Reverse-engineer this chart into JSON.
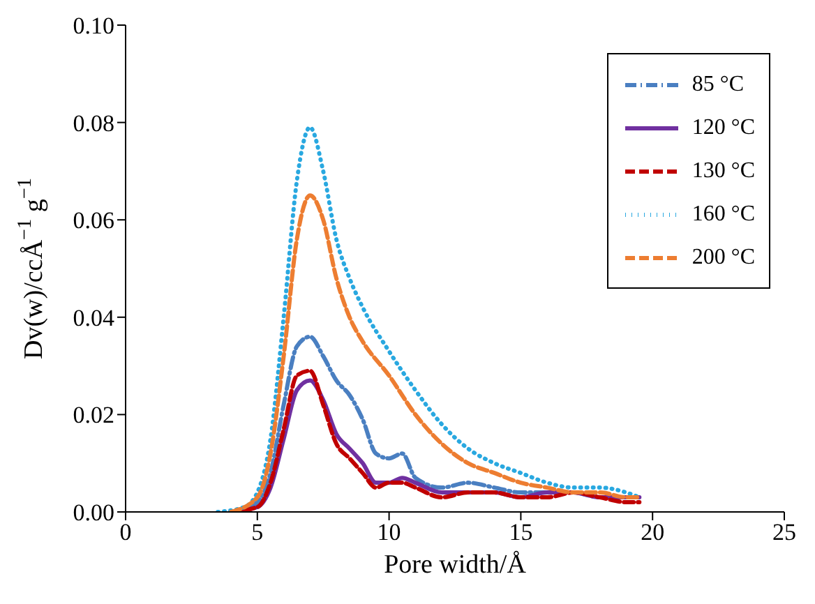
{
  "chart_data": {
    "type": "line",
    "xlabel": "Pore width/Å",
    "ylabel": "Dv(w)/ccÅ$^{−1}$ g$^{−1}$",
    "xlim": [
      0,
      25
    ],
    "xticks": [
      0,
      5,
      10,
      15,
      20,
      25
    ],
    "ylim": [
      0,
      0.1
    ],
    "yticks": [
      {
        "value": 0,
        "label": "0.00"
      },
      {
        "value": 0.02,
        "label": "0.02"
      },
      {
        "value": 0.04,
        "label": "0.04"
      },
      {
        "value": 0.06,
        "label": "0.06"
      },
      {
        "value": 0.08,
        "label": "0.08"
      },
      {
        "value": 0.1,
        "label": "0.10"
      }
    ],
    "legend": "top right",
    "marker": "none",
    "series": [
      {
        "name": "85 °C",
        "color": "#4a7fc1",
        "line_style": "dashdot",
        "x": [
          4,
          5,
          5.5,
          6,
          6.5,
          7,
          7.5,
          8,
          8.5,
          9,
          9.5,
          10,
          10.5,
          11,
          12,
          13,
          14,
          15,
          16,
          17,
          18,
          19,
          19.5
        ],
        "values": [
          0,
          0.002,
          0.008,
          0.022,
          0.034,
          0.036,
          0.032,
          0.027,
          0.024,
          0.019,
          0.012,
          0.011,
          0.012,
          0.007,
          0.005,
          0.006,
          0.005,
          0.004,
          0.004,
          0.004,
          0.003,
          0.003,
          0.003
        ]
      },
      {
        "name": "120 °C",
        "color": "#7030a0",
        "line_style": "solid",
        "x": [
          4,
          5,
          5.5,
          6,
          6.5,
          7,
          7.5,
          8,
          8.5,
          9,
          9.5,
          10,
          10.5,
          11,
          12,
          13,
          14,
          15,
          16,
          17,
          18,
          19,
          19.5
        ],
        "values": [
          0,
          0.001,
          0.005,
          0.015,
          0.025,
          0.027,
          0.023,
          0.016,
          0.013,
          0.01,
          0.006,
          0.006,
          0.007,
          0.006,
          0.004,
          0.004,
          0.004,
          0.003,
          0.004,
          0.004,
          0.003,
          0.003,
          0.003
        ]
      },
      {
        "name": "130 °C",
        "color": "#c00000",
        "line_style": "dashed",
        "x": [
          4,
          5,
          5.5,
          6,
          6.5,
          7,
          7.5,
          8,
          8.5,
          9,
          9.5,
          10,
          10.5,
          11,
          12,
          13,
          14,
          15,
          16,
          17,
          18,
          19,
          19.5
        ],
        "values": [
          0,
          0.001,
          0.006,
          0.017,
          0.028,
          0.029,
          0.022,
          0.014,
          0.011,
          0.008,
          0.005,
          0.006,
          0.006,
          0.005,
          0.003,
          0.004,
          0.004,
          0.003,
          0.003,
          0.004,
          0.003,
          0.002,
          0.002
        ]
      },
      {
        "name": "160 °C",
        "color": "#29a8e0",
        "line_style": "dotted",
        "x": [
          3.5,
          4.5,
          5,
          5.5,
          6,
          6.5,
          7,
          7.5,
          8,
          8.5,
          9,
          10,
          11,
          12,
          13,
          14,
          15,
          16,
          17,
          18,
          19,
          19.5
        ],
        "values": [
          0,
          0.001,
          0.004,
          0.015,
          0.04,
          0.068,
          0.079,
          0.07,
          0.056,
          0.048,
          0.042,
          0.033,
          0.025,
          0.018,
          0.013,
          0.01,
          0.008,
          0.006,
          0.005,
          0.005,
          0.004,
          0.003
        ]
      },
      {
        "name": "200 °C",
        "color": "#ed7d31",
        "line_style": "dashed",
        "x": [
          4,
          5,
          5.5,
          6,
          6.5,
          7,
          7.5,
          8,
          8.5,
          9,
          10,
          11,
          12,
          13,
          14,
          15,
          16,
          17,
          18,
          19,
          19.5
        ],
        "values": [
          0,
          0.003,
          0.012,
          0.032,
          0.056,
          0.065,
          0.06,
          0.048,
          0.04,
          0.035,
          0.028,
          0.02,
          0.014,
          0.01,
          0.008,
          0.006,
          0.005,
          0.004,
          0.004,
          0.003,
          0.003
        ]
      }
    ]
  }
}
